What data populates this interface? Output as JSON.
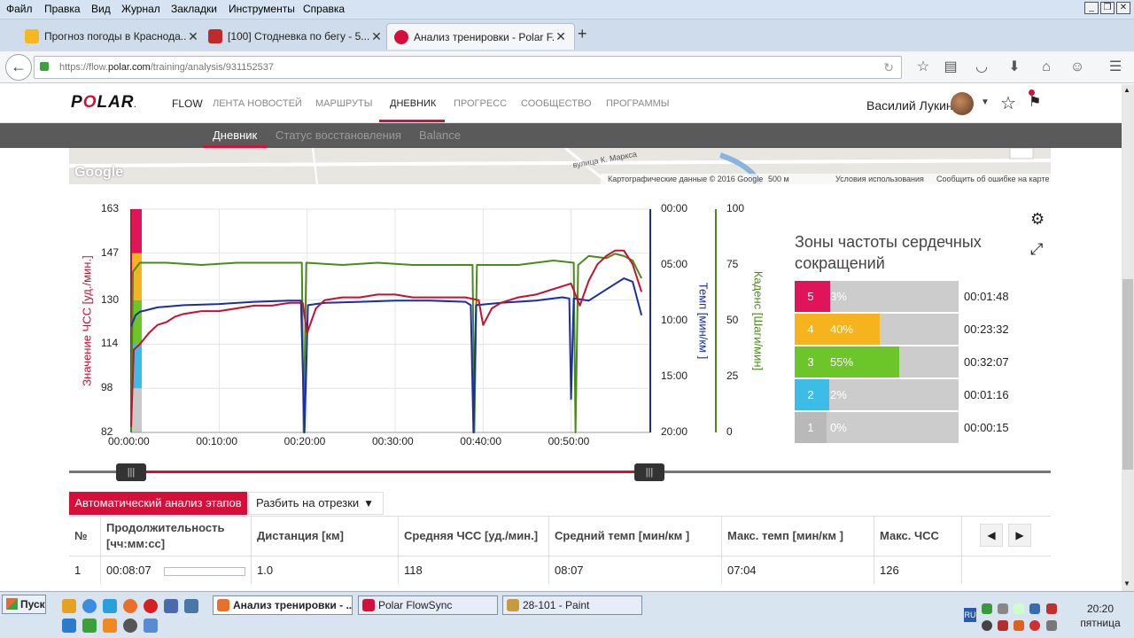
{
  "menubar": {
    "items": [
      "Файл",
      "Правка",
      "Вид",
      "Журнал",
      "Закладки",
      "Инструменты",
      "Справка"
    ]
  },
  "tabs": [
    {
      "title": "Прогноз погоды в Краснода...",
      "icon_color": "#f5b820"
    },
    {
      "title": "[100] Стодневка по бегу - 5...",
      "icon_color": "#c02a2a"
    },
    {
      "title": "Анализ тренировки - Polar F...",
      "icon_color": "#d4103a"
    }
  ],
  "url": {
    "prefix": "https://flow.",
    "host": "polar.com",
    "path": "/training/analysis/931152537"
  },
  "polar": {
    "logo_left": "P",
    "logo_o": "O",
    "logo_right": "LAR",
    "logo_mark": ".",
    "flow": "FLOW",
    "nav": [
      "ЛЕНТА НОВОСТЕЙ",
      "МАРШРУТЫ",
      "ДНЕВНИК",
      "ПРОГРЕСС",
      "СООБЩЕСТВО",
      "ПРОГРАММЫ"
    ],
    "user": "Василий Лукин",
    "subnav": [
      "Дневник",
      "Статус восстановления",
      "Balance"
    ]
  },
  "map": {
    "google": "Google",
    "street": "вулица К. Маркса",
    "footer": [
      "Картографические данные © 2016 Google",
      "500 м",
      "Условия использования",
      "Сообщить об ошибке на карте"
    ]
  },
  "chart_data": {
    "type": "line",
    "x_ticks": [
      "00:00:00",
      "00:10:00",
      "00:20:00",
      "00:30:00",
      "00:40:00",
      "00:50:00"
    ],
    "x_max_min": 59,
    "hr": {
      "label": "Значение ЧСС [уд./мин.]",
      "color": "#c8102e",
      "ticks": [
        "163",
        "147",
        "130",
        "114",
        "98",
        "82"
      ]
    },
    "pace": {
      "label": "Темп [мин/км ]",
      "color": "#1a2ea6",
      "ticks": [
        "00:00",
        "05:00",
        "10:00",
        "15:00",
        "20:00"
      ]
    },
    "cadence": {
      "label": "Каденс [Шаги/мин]",
      "color": "#4a8a1a",
      "ticks": [
        "100",
        "75",
        "50",
        "25",
        "0"
      ]
    },
    "hr_series": [
      [
        0,
        84
      ],
      [
        0.3,
        112
      ],
      [
        1,
        114
      ],
      [
        2,
        118
      ],
      [
        3,
        121
      ],
      [
        4,
        122
      ],
      [
        5,
        124
      ],
      [
        6,
        125
      ],
      [
        8,
        126
      ],
      [
        10,
        126
      ],
      [
        12,
        127
      ],
      [
        14,
        128
      ],
      [
        16,
        128
      ],
      [
        18,
        129
      ],
      [
        19.5,
        129
      ],
      [
        20,
        118
      ],
      [
        21,
        127
      ],
      [
        22,
        130
      ],
      [
        24,
        131
      ],
      [
        26,
        131
      ],
      [
        28,
        132
      ],
      [
        30,
        132
      ],
      [
        32,
        131
      ],
      [
        34,
        131
      ],
      [
        36,
        131
      ],
      [
        38,
        131
      ],
      [
        39.5,
        130
      ],
      [
        40,
        121
      ],
      [
        41,
        127
      ],
      [
        42,
        129
      ],
      [
        44,
        131
      ],
      [
        46,
        132
      ],
      [
        48,
        134
      ],
      [
        50,
        136
      ],
      [
        51,
        128
      ],
      [
        52,
        137
      ],
      [
        53,
        143
      ],
      [
        54,
        146
      ],
      [
        55,
        148
      ],
      [
        56,
        148
      ],
      [
        57,
        143
      ],
      [
        58,
        133
      ]
    ],
    "pace_series": [
      [
        0,
        10.5
      ],
      [
        0.5,
        9.5
      ],
      [
        1,
        9.2
      ],
      [
        3,
        8.8
      ],
      [
        6,
        8.6
      ],
      [
        10,
        8.5
      ],
      [
        14,
        8.3
      ],
      [
        18,
        8.2
      ],
      [
        19.3,
        8.2
      ],
      [
        19.7,
        20
      ],
      [
        20.1,
        8.6
      ],
      [
        22,
        8.4
      ],
      [
        26,
        8.3
      ],
      [
        30,
        8.2
      ],
      [
        34,
        8.2
      ],
      [
        38,
        8.3
      ],
      [
        38.6,
        8.6
      ],
      [
        38.9,
        20
      ],
      [
        39.2,
        8.6
      ],
      [
        42,
        8.4
      ],
      [
        46,
        8.2
      ],
      [
        49,
        7.9
      ],
      [
        49.8,
        8
      ],
      [
        50,
        17
      ],
      [
        50.3,
        8
      ],
      [
        52,
        8.2
      ],
      [
        54,
        7.2
      ],
      [
        56,
        6.2
      ],
      [
        57,
        6.5
      ],
      [
        58,
        9.5
      ]
    ],
    "cad_series": [
      [
        0,
        0
      ],
      [
        0.2,
        72
      ],
      [
        1,
        76
      ],
      [
        4,
        76
      ],
      [
        8,
        75
      ],
      [
        12,
        76
      ],
      [
        16,
        76
      ],
      [
        19.4,
        76
      ],
      [
        19.6,
        0
      ],
      [
        19.9,
        76
      ],
      [
        24,
        75
      ],
      [
        28,
        76
      ],
      [
        32,
        75
      ],
      [
        36,
        75
      ],
      [
        38.8,
        75
      ],
      [
        39,
        0
      ],
      [
        39.3,
        75
      ],
      [
        44,
        75
      ],
      [
        48,
        77
      ],
      [
        50.3,
        76
      ],
      [
        50.5,
        0
      ],
      [
        50.8,
        75
      ],
      [
        52,
        79
      ],
      [
        54,
        78
      ],
      [
        55,
        80
      ],
      [
        56,
        79
      ],
      [
        57,
        77
      ],
      [
        58,
        69
      ]
    ],
    "ylim_hr": [
      82,
      163
    ],
    "ylim_cad": [
      0,
      100
    ],
    "ylim_pace_min": [
      0,
      20
    ]
  },
  "zones": {
    "title": "Зоны частоты сердечных сокращений",
    "rows": [
      {
        "num": "5",
        "pct": "3%",
        "fraction": 0.03,
        "time": "00:01:48",
        "color": "#e0145a"
      },
      {
        "num": "4",
        "pct": "40%",
        "fraction": 0.4,
        "time": "00:23:32",
        "color": "#f5b41e"
      },
      {
        "num": "3",
        "pct": "55%",
        "fraction": 0.55,
        "time": "00:32:07",
        "color": "#6cc62a"
      },
      {
        "num": "2",
        "pct": "2%",
        "fraction": 0.02,
        "time": "00:01:16",
        "color": "#3cbde8"
      },
      {
        "num": "1",
        "pct": "0%",
        "fraction": 0.0,
        "time": "00:00:15",
        "color": "#b9b9b9"
      }
    ]
  },
  "analysis": {
    "auto": "Автоматический анализ этапов",
    "split": "Разбить на отрезки"
  },
  "table": {
    "headers": [
      "№",
      "Продолжительность [чч:мм:сс]",
      "Дистанция [км]",
      "Средняя ЧСС [уд./мин.]",
      "Средний темп [мин/км ]",
      "Макс. темп [мин/км ]",
      "Макс. ЧСС"
    ],
    "rows": [
      [
        "1",
        "00:08:07",
        "1.0",
        "118",
        "08:07",
        "07:04",
        "126"
      ]
    ]
  },
  "taskbar": {
    "start": "Пуск",
    "buttons": [
      "Анализ тренировки - ...",
      "Polar FlowSync",
      "28-101 - Paint"
    ],
    "lang": "RU",
    "time": "20:20",
    "day": "пятница"
  }
}
